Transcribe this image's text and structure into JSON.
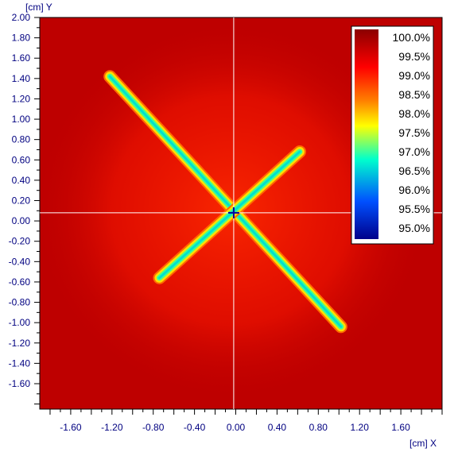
{
  "chart_data": {
    "type": "heatmap",
    "title": "",
    "xlabel": "[cm] X",
    "ylabel": "[cm] Y",
    "xlim": [
      -1.9,
      2.0
    ],
    "ylim": [
      -1.85,
      2.0
    ],
    "x_ticks": [
      "-1.60",
      "-1.20",
      "-0.80",
      "-0.40",
      "0.00",
      "0.40",
      "0.80",
      "1.20",
      "1.60"
    ],
    "y_ticks": [
      "2.00",
      "1.80",
      "1.60",
      "1.40",
      "1.20",
      "1.00",
      "0.80",
      "0.60",
      "0.40",
      "0.20",
      "0.00",
      "-0.20",
      "-0.40",
      "-0.60",
      "-0.80",
      "-1.00",
      "-1.20",
      "-1.40",
      "-1.60"
    ],
    "colorbar": {
      "position": "top-right",
      "labels": [
        "100.0%",
        "99.5%",
        "99.0%",
        "98.5%",
        "98.0%",
        "97.5%",
        "97.0%",
        "96.5%",
        "96.0%",
        "95.5%",
        "95.0%"
      ],
      "colors": [
        "#8b0000",
        "#ff0000",
        "#ff8000",
        "#ffff00",
        "#00ffcc",
        "#0050ff",
        "#00008b"
      ]
    },
    "background_value": "100.0%",
    "crosshair": {
      "x": -0.02,
      "y": 0.08
    },
    "series": [
      {
        "from": [
          -1.22,
          1.42
        ],
        "to": [
          1.02,
          -1.04
        ],
        "value": "97.5%"
      },
      {
        "from": [
          -0.74,
          -0.56
        ],
        "to": [
          0.62,
          0.68
        ],
        "value": "97.5%"
      }
    ]
  }
}
